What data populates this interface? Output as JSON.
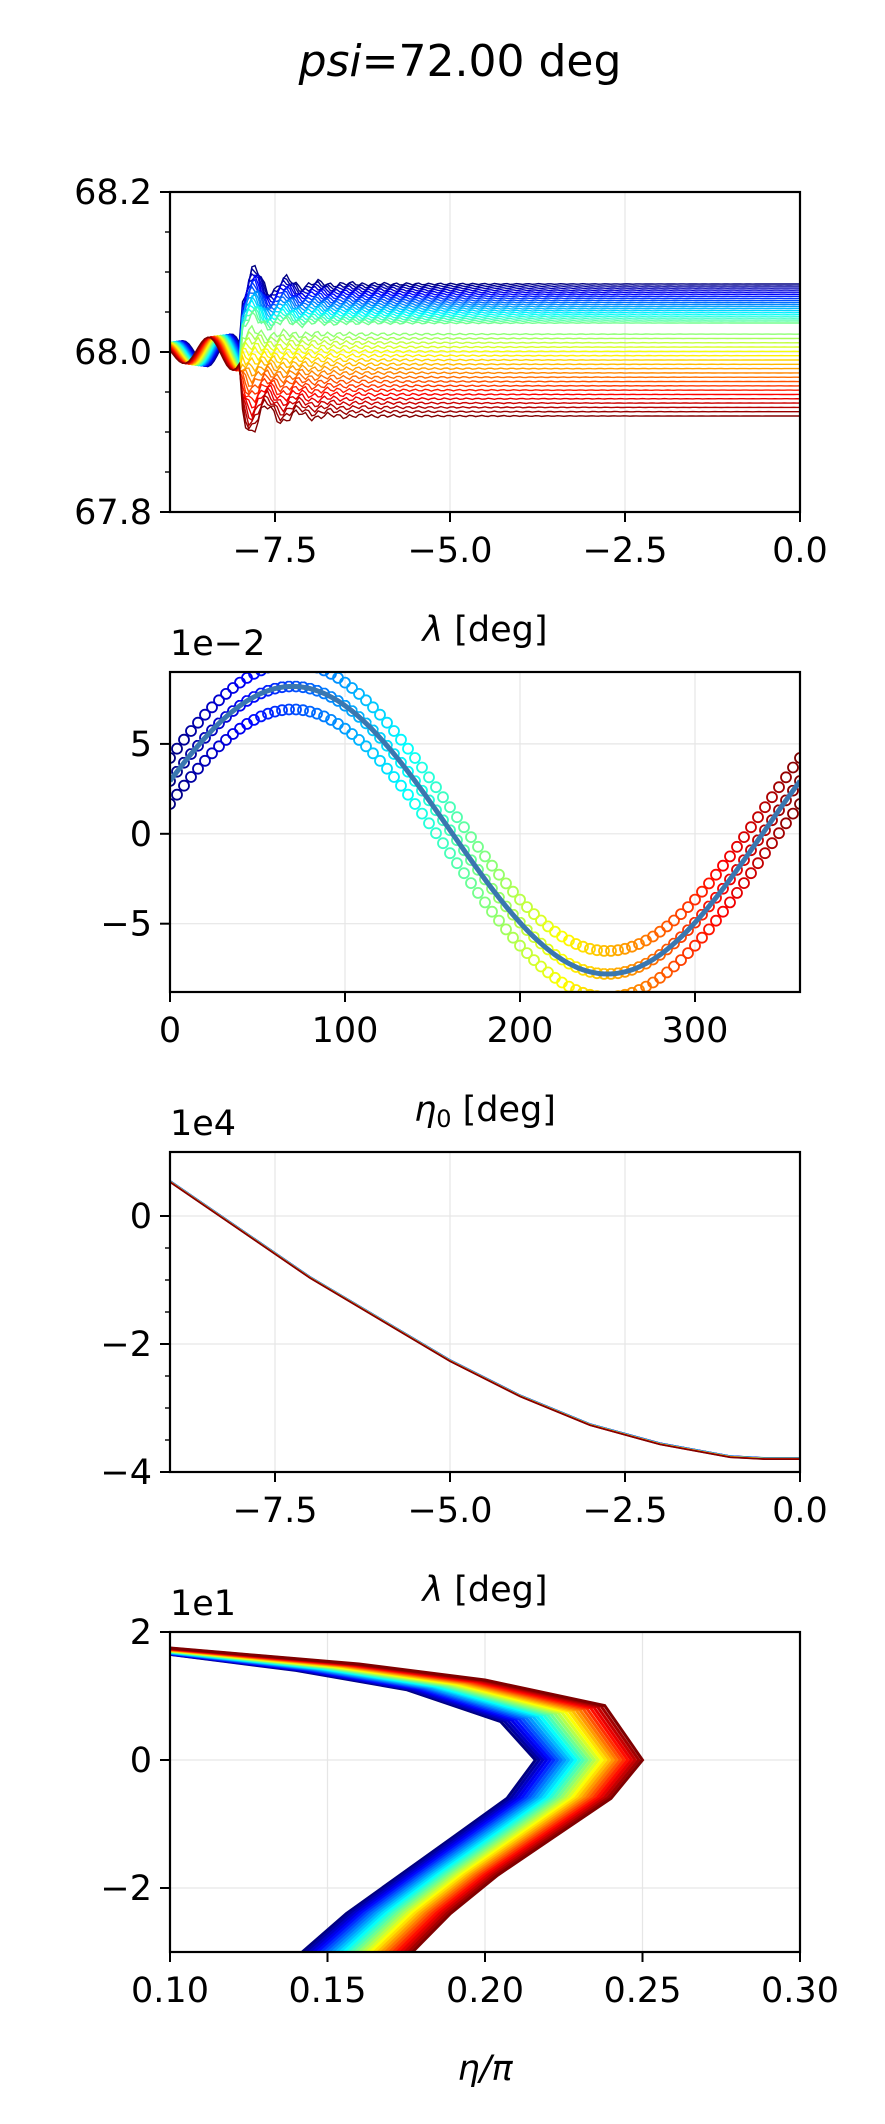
{
  "title": {
    "prefix": "psi",
    "suffix": "=72.00 deg"
  },
  "chart_data": [
    {
      "id": "panel1",
      "type": "line",
      "xlabel_sym": "λ",
      "xlabel_unit": " [deg]",
      "xlim": [
        -9.0,
        0.0
      ],
      "ylim": [
        67.8,
        68.2
      ],
      "xticks": [
        -7.5,
        -5.0,
        -2.5,
        0.0
      ],
      "xtick_labels": [
        "−7.5",
        "−5.0",
        "−2.5",
        "0.0"
      ],
      "yticks": [
        67.8,
        68.0,
        68.2
      ],
      "ytick_labels": [
        "67.8",
        "68.0",
        "68.2"
      ],
      "series_count": 40,
      "colormap": "jet",
      "start_value": 68.0,
      "onset_x": -8.0,
      "final_values_range": [
        67.92,
        68.085
      ],
      "grid": true
    },
    {
      "id": "panel2",
      "type": "scatter",
      "offset_text": "1e−2",
      "xlabel_sym": "η",
      "xlabel_sub": "0",
      "xlabel_unit": " [deg]",
      "xlim": [
        0,
        360
      ],
      "ylim": [
        -8.8,
        9.0
      ],
      "xticks": [
        0,
        100,
        200,
        300
      ],
      "xtick_labels": [
        "0",
        "100",
        "200",
        "300"
      ],
      "yticks": [
        -5,
        0,
        5
      ],
      "ytick_labels": [
        "−5",
        "0",
        "5"
      ],
      "mean_curve": {
        "amplitude": 8.0,
        "offset": 0.2,
        "phase_deg": 70
      },
      "band_halfwidth": 0.8,
      "colormap": "jet",
      "line_color": "#3a77b0",
      "grid": true
    },
    {
      "id": "panel3",
      "type": "line",
      "offset_text": "1e4",
      "xlabel_sym": "λ",
      "xlabel_unit": " [deg]",
      "xlim": [
        -9.0,
        0.0
      ],
      "ylim": [
        -4.0,
        1.0
      ],
      "xticks": [
        -7.5,
        -5.0,
        -2.5,
        0.0
      ],
      "xtick_labels": [
        "−7.5",
        "−5.0",
        "−2.5",
        "0.0"
      ],
      "yticks": [
        -4,
        -2,
        0
      ],
      "ytick_labels": [
        "−4",
        "−2",
        "0"
      ],
      "x": [
        -9.0,
        -8.0,
        -7.0,
        -6.0,
        -5.0,
        -4.0,
        -3.0,
        -2.0,
        -1.0,
        -0.5,
        0.0
      ],
      "y": [
        0.55,
        -0.2,
        -0.95,
        -1.6,
        -2.25,
        -2.8,
        -3.25,
        -3.55,
        -3.75,
        -3.78,
        -3.78
      ],
      "colormap": "jet",
      "grid": true
    },
    {
      "id": "panel4",
      "type": "line",
      "offset_text": "1e1",
      "xlabel": "η/π",
      "xlim": [
        0.1,
        0.3
      ],
      "ylim": [
        -3.0,
        2.0
      ],
      "xticks": [
        0.1,
        0.15,
        0.2,
        0.25,
        0.3
      ],
      "xtick_labels": [
        "0.10",
        "0.15",
        "0.20",
        "0.25",
        "0.30"
      ],
      "yticks": [
        -2,
        0,
        2
      ],
      "ytick_labels": [
        "−2",
        "0",
        "2"
      ],
      "band_left": {
        "y": [
          1.65,
          1.4,
          1.1,
          0.6,
          0.0,
          -0.6,
          -1.2,
          -1.8,
          -2.4,
          -3.0
        ],
        "x": [
          0.1,
          0.14,
          0.175,
          0.205,
          0.216,
          0.207,
          0.19,
          0.173,
          0.156,
          0.142
        ]
      },
      "band_right": {
        "y": [
          1.75,
          1.5,
          1.25,
          0.85,
          0.0,
          -0.6,
          -1.2,
          -1.8,
          -2.4,
          -3.0
        ],
        "x": [
          0.1,
          0.16,
          0.2,
          0.238,
          0.25,
          0.24,
          0.222,
          0.204,
          0.189,
          0.177
        ]
      },
      "colormap": "jet",
      "grid": true
    }
  ]
}
